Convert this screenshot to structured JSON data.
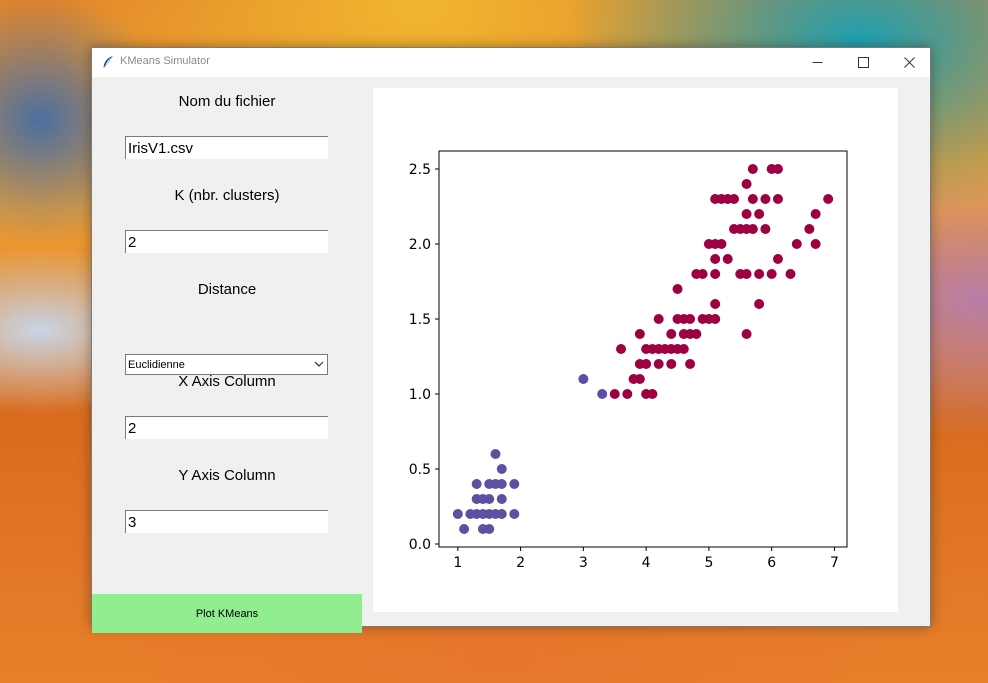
{
  "window": {
    "title": "KMeans Simulator",
    "icon": "feather-icon"
  },
  "form": {
    "filename_label": "Nom du fichier",
    "filename_value": "IrisV1.csv",
    "k_label": "K (nbr. clusters)",
    "k_value": "2",
    "distance_label": "Distance",
    "distance_value": "Euclidienne",
    "x_label": "X Axis Column",
    "x_value": "2",
    "y_label": "Y Axis Column",
    "y_value": "3",
    "plot_button": "Plot KMeans"
  },
  "colors": {
    "button_bg": "#90ee90",
    "cluster_a": "#5e4fa2",
    "cluster_b": "#9e0142"
  },
  "chart_data": {
    "type": "scatter",
    "title": "",
    "xlabel": "",
    "ylabel": "",
    "xlim": [
      0.7,
      7.2
    ],
    "ylim": [
      -0.02,
      2.62
    ],
    "xticks": [
      "1",
      "2",
      "3",
      "4",
      "5",
      "6",
      "7"
    ],
    "yticks": [
      "0.0",
      "0.5",
      "1.0",
      "1.5",
      "2.0",
      "2.5"
    ],
    "grid": false,
    "series": [
      {
        "color": "#5e4fa2",
        "points": [
          [
            1.0,
            0.2
          ],
          [
            1.1,
            0.1
          ],
          [
            1.2,
            0.2
          ],
          [
            1.3,
            0.2
          ],
          [
            1.3,
            0.3
          ],
          [
            1.3,
            0.4
          ],
          [
            1.4,
            0.1
          ],
          [
            1.4,
            0.2
          ],
          [
            1.4,
            0.3
          ],
          [
            1.5,
            0.1
          ],
          [
            1.5,
            0.2
          ],
          [
            1.5,
            0.3
          ],
          [
            1.5,
            0.4
          ],
          [
            1.6,
            0.2
          ],
          [
            1.6,
            0.4
          ],
          [
            1.6,
            0.6
          ],
          [
            1.7,
            0.2
          ],
          [
            1.7,
            0.3
          ],
          [
            1.7,
            0.4
          ],
          [
            1.7,
            0.5
          ],
          [
            1.9,
            0.2
          ],
          [
            1.9,
            0.4
          ],
          [
            3.0,
            1.1
          ],
          [
            3.3,
            1.0
          ]
        ]
      },
      {
        "color": "#9e0142",
        "points": [
          [
            3.5,
            1.0
          ],
          [
            3.6,
            1.3
          ],
          [
            3.7,
            1.0
          ],
          [
            3.8,
            1.1
          ],
          [
            3.9,
            1.1
          ],
          [
            3.9,
            1.2
          ],
          [
            3.9,
            1.4
          ],
          [
            4.0,
            1.0
          ],
          [
            4.0,
            1.2
          ],
          [
            4.0,
            1.3
          ],
          [
            4.1,
            1.0
          ],
          [
            4.1,
            1.3
          ],
          [
            4.2,
            1.2
          ],
          [
            4.2,
            1.3
          ],
          [
            4.2,
            1.5
          ],
          [
            4.3,
            1.3
          ],
          [
            4.4,
            1.2
          ],
          [
            4.4,
            1.3
          ],
          [
            4.4,
            1.4
          ],
          [
            4.5,
            1.3
          ],
          [
            4.5,
            1.5
          ],
          [
            4.5,
            1.7
          ],
          [
            4.6,
            1.3
          ],
          [
            4.6,
            1.4
          ],
          [
            4.6,
            1.5
          ],
          [
            4.7,
            1.2
          ],
          [
            4.7,
            1.4
          ],
          [
            4.7,
            1.5
          ],
          [
            4.8,
            1.4
          ],
          [
            4.8,
            1.8
          ],
          [
            4.9,
            1.5
          ],
          [
            4.9,
            1.8
          ],
          [
            5.0,
            1.5
          ],
          [
            5.0,
            2.0
          ],
          [
            5.1,
            1.5
          ],
          [
            5.1,
            1.6
          ],
          [
            5.1,
            1.8
          ],
          [
            5.1,
            1.9
          ],
          [
            5.1,
            2.0
          ],
          [
            5.1,
            2.3
          ],
          [
            5.2,
            2.0
          ],
          [
            5.2,
            2.3
          ],
          [
            5.3,
            1.9
          ],
          [
            5.3,
            2.3
          ],
          [
            5.4,
            2.1
          ],
          [
            5.4,
            2.3
          ],
          [
            5.5,
            1.8
          ],
          [
            5.5,
            2.1
          ],
          [
            5.6,
            1.4
          ],
          [
            5.6,
            1.8
          ],
          [
            5.6,
            2.1
          ],
          [
            5.6,
            2.2
          ],
          [
            5.6,
            2.4
          ],
          [
            5.7,
            2.1
          ],
          [
            5.7,
            2.3
          ],
          [
            5.7,
            2.5
          ],
          [
            5.8,
            1.6
          ],
          [
            5.8,
            1.8
          ],
          [
            5.8,
            2.2
          ],
          [
            5.9,
            2.1
          ],
          [
            5.9,
            2.3
          ],
          [
            6.0,
            1.8
          ],
          [
            6.0,
            2.5
          ],
          [
            6.1,
            1.9
          ],
          [
            6.1,
            2.3
          ],
          [
            6.1,
            2.5
          ],
          [
            6.3,
            1.8
          ],
          [
            6.4,
            2.0
          ],
          [
            6.6,
            2.1
          ],
          [
            6.7,
            2.0
          ],
          [
            6.7,
            2.2
          ],
          [
            6.9,
            2.3
          ]
        ]
      }
    ]
  }
}
